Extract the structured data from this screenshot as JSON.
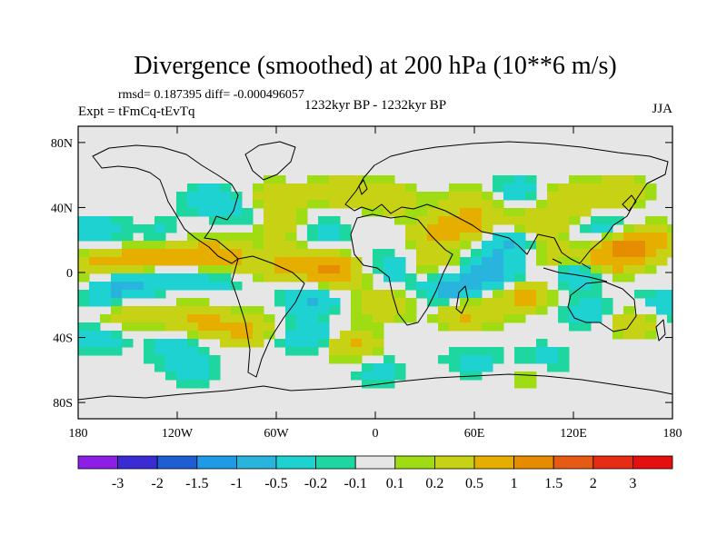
{
  "chart_data": {
    "type": "heatmap",
    "title": "Divergence (smoothed) at 200 hPa (10**6 m/s)",
    "stats": "rmsd= 0.187395  diff= -0.000496057",
    "experiment": "Expt = tFmCq-tEvTq",
    "period": "1232kyr BP - 1232kyr BP",
    "season": "JJA",
    "x_axis": {
      "range": [
        -180,
        180
      ],
      "ticks": [
        -180,
        -120,
        -60,
        0,
        60,
        120,
        180
      ],
      "tick_labels": [
        "180",
        "120W",
        "60W",
        "0",
        "60E",
        "120E",
        "180"
      ]
    },
    "y_axis": {
      "range": [
        -90,
        90
      ],
      "ticks": [
        80,
        40,
        0,
        -40,
        -80
      ],
      "tick_labels": [
        "80N",
        "40N",
        "0",
        "40S",
        "80S"
      ]
    },
    "colorbar": {
      "labels": [
        "-3",
        "-2",
        "-1.5",
        "-1",
        "-0.5",
        "-0.2",
        "-0.1",
        "0.1",
        "0.2",
        "0.5",
        "1",
        "1.5",
        "2",
        "3"
      ],
      "colors": [
        "#8c1ee6",
        "#3a2bd2",
        "#1e5ed2",
        "#1e9be6",
        "#28b4dc",
        "#1ed2d2",
        "#1ed7a0",
        "#e6e6e6",
        "#a0dc14",
        "#c8d214",
        "#e6af00",
        "#e68c00",
        "#e65a14",
        "#e62d14",
        "#e60f0f"
      ]
    },
    "features": [
      {
        "lon": -165,
        "lat": 5,
        "value": 0.6
      },
      {
        "lon": -140,
        "lat": 8,
        "value": 0.7
      },
      {
        "lon": -115,
        "lat": 10,
        "value": 0.7
      },
      {
        "lon": -95,
        "lat": 10,
        "value": 0.6
      },
      {
        "lon": -80,
        "lat": 3,
        "value": 0.3
      },
      {
        "lon": -150,
        "lat": -5,
        "value": -0.6
      },
      {
        "lon": -120,
        "lat": 0,
        "value": -0.5
      },
      {
        "lon": -90,
        "lat": -2,
        "value": -0.4
      },
      {
        "lon": -170,
        "lat": 25,
        "value": -0.4
      },
      {
        "lon": -130,
        "lat": 22,
        "value": -0.3
      },
      {
        "lon": -150,
        "lat": -25,
        "value": 0.5
      },
      {
        "lon": -110,
        "lat": -30,
        "value": 0.6
      },
      {
        "lon": -80,
        "lat": -35,
        "value": 0.6
      },
      {
        "lon": -160,
        "lat": -15,
        "value": -0.4
      },
      {
        "lon": -170,
        "lat": -40,
        "value": -0.4
      },
      {
        "lon": -120,
        "lat": -45,
        "value": -0.4
      },
      {
        "lon": -40,
        "lat": -15,
        "value": -0.6
      },
      {
        "lon": -25,
        "lat": 0,
        "value": 1.0
      },
      {
        "lon": -50,
        "lat": 5,
        "value": 0.6
      },
      {
        "lon": -30,
        "lat": 25,
        "value": -0.3
      },
      {
        "lon": -60,
        "lat": 28,
        "value": 0.4
      },
      {
        "lon": -75,
        "lat": 35,
        "value": -0.3
      },
      {
        "lon": -40,
        "lat": -40,
        "value": -0.5
      },
      {
        "lon": -15,
        "lat": -45,
        "value": 0.6
      },
      {
        "lon": 5,
        "lat": -20,
        "value": 0.4
      },
      {
        "lon": 10,
        "lat": 3,
        "value": -0.4
      },
      {
        "lon": 40,
        "lat": 25,
        "value": 0.6
      },
      {
        "lon": 35,
        "lat": 5,
        "value": 0.4
      },
      {
        "lon": 60,
        "lat": 30,
        "value": 0.5
      },
      {
        "lon": 45,
        "lat": -10,
        "value": -0.7
      },
      {
        "lon": 70,
        "lat": 0,
        "value": -0.7
      },
      {
        "lon": 55,
        "lat": -25,
        "value": 0.6
      },
      {
        "lon": 90,
        "lat": -15,
        "value": 0.6
      },
      {
        "lon": 80,
        "lat": 18,
        "value": -0.6
      },
      {
        "lon": 100,
        "lat": 30,
        "value": 0.5
      },
      {
        "lon": 110,
        "lat": 10,
        "value": 0.4
      },
      {
        "lon": 125,
        "lat": 0,
        "value": -0.6
      },
      {
        "lon": 140,
        "lat": 25,
        "value": -0.5
      },
      {
        "lon": 150,
        "lat": 15,
        "value": 1.0
      },
      {
        "lon": 165,
        "lat": 20,
        "value": 0.6
      },
      {
        "lon": 140,
        "lat": 5,
        "value": 0.6
      },
      {
        "lon": 130,
        "lat": -25,
        "value": -0.4
      },
      {
        "lon": 155,
        "lat": -30,
        "value": 0.5
      },
      {
        "lon": 175,
        "lat": -20,
        "value": -0.4
      },
      {
        "lon": 60,
        "lat": 45,
        "value": 0.4
      },
      {
        "lon": 85,
        "lat": 50,
        "value": -0.4
      },
      {
        "lon": 120,
        "lat": 45,
        "value": 0.5
      },
      {
        "lon": 150,
        "lat": 50,
        "value": 0.4
      },
      {
        "lon": -100,
        "lat": 45,
        "value": -0.4
      },
      {
        "lon": -60,
        "lat": 45,
        "value": 0.5
      },
      {
        "lon": -20,
        "lat": 50,
        "value": 0.4
      },
      {
        "lon": 10,
        "lat": 45,
        "value": 0.4
      },
      {
        "lon": 0,
        "lat": -60,
        "value": -0.3
      },
      {
        "lon": 60,
        "lat": -55,
        "value": -0.3
      },
      {
        "lon": 100,
        "lat": -55,
        "value": -0.5
      },
      {
        "lon": 95,
        "lat": -60,
        "value": 0.4
      },
      {
        "lon": -110,
        "lat": -60,
        "value": -0.3
      }
    ]
  }
}
